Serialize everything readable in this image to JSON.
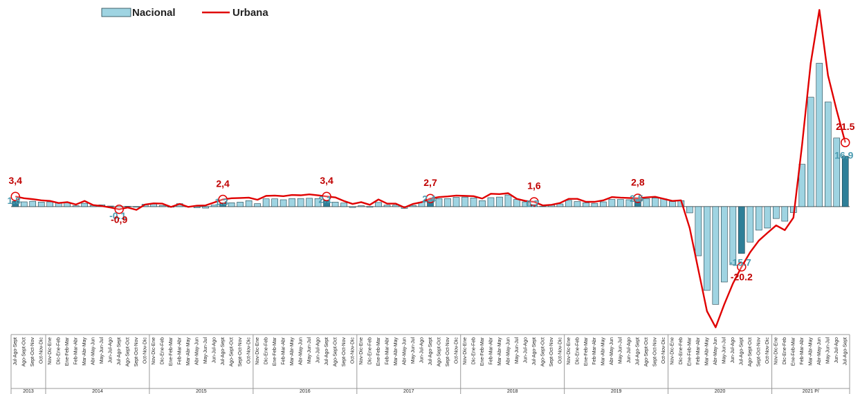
{
  "chart_data": {
    "type": "bar_line",
    "categories": [
      "Jul-Ago-Sept",
      "Ago-Sept-Oct",
      "Sept-Oct-Nov",
      "Oct-Nov-Dic",
      "Nov-Dic-Ene",
      "Dic-Ene-Feb",
      "Ene-Feb-Mar",
      "Feb-Mar-Abr",
      "Mar-Abr-May",
      "Abr-May-Jun",
      "May-Jun-Jul",
      "Jun-Jul-Ago",
      "Jul-Ago-Sept",
      "Ago-Sept-Oct",
      "Sept-Oct-Nov",
      "Oct-Nov-Dic",
      "Nov-Dic-Ene",
      "Dic-Ene-Feb",
      "Ene-Feb-Mar",
      "Feb-Mar-Abr",
      "Mar-Abr-May",
      "Abr-May-Jun",
      "May-Jun-Jul",
      "Jun-Jul-Ago",
      "Jul-Ago-Sept",
      "Ago-Sept-Oct",
      "Sept-Oct-Nov",
      "Oct-Nov-Dic",
      "Nov-Dic-Ene",
      "Dic-Ene-Feb",
      "Ene-Feb-Mar",
      "Feb-Mar-Abr",
      "Mar-Abr-May",
      "Abr-May-Jun",
      "May-Jun-Jul",
      "Jun-Jul-Ago",
      "Jul-Ago-Sept",
      "Ago-Sept-Oct",
      "Sept-Oct-Nov",
      "Oct-Nov-Dic",
      "Nov-Dic-Ene",
      "Dic-Ene-Feb",
      "Ene-Feb-Mar",
      "Feb-Mar-Abr",
      "Mar-Abr-May",
      "Abr-May-Jun",
      "May-Jun-Jul",
      "Jun-Jul-Ago",
      "Jul-Ago-Sept",
      "Ago-Sept-Oct",
      "Sept-Oct-Nov",
      "Oct-Nov-Dic",
      "Nov-Dic-Ene",
      "Dic-Ene-Feb",
      "Ene-Feb-Mar",
      "Feb-Mar-Abr",
      "Mar-Abr-May",
      "Abr-May-Jun",
      "May-Jun-Jul",
      "Jun-Jul-Ago",
      "Jul-Ago-Sept",
      "Ago-Sept-Oct",
      "Sept-Oct-Nov",
      "Oct-Nov-Dic",
      "Nov-Dic-Ene",
      "Dic-Ene-Feb",
      "Ene-Feb-Mar",
      "Feb-Mar-Abr",
      "Mar-Abr-May",
      "Abr-May-Jun",
      "May-Jun-Jul",
      "Jun-Jul-Ago",
      "Jul-Ago-Sept",
      "Ago-Sept-Oct",
      "Sept-Oct-Nov",
      "Oct-Nov-Dic",
      "Nov-Dic-Ene",
      "Dic-Ene-Feb",
      "Ene-Feb-Mar",
      "Feb-Mar-Abr",
      "Mar-Abr-May",
      "Abr-May-Jun",
      "May-Jun-Jul",
      "Jun-Jul-Ago",
      "Jul-Ago-Sept",
      "Ago-Sept-Oct",
      "Sept-Oct-Nov",
      "Oct-Nov-Dic",
      "Nov-Dic-Ene",
      "Dic-Ene-Feb",
      "Ene-Feb-Mar",
      "Feb-Mar-Abr",
      "Mar-Abr-May",
      "Abr-May-Jun",
      "May-Jun-Jul",
      "Jun-Jul-Ago",
      "Jul-Ago-Sept"
    ],
    "years": [
      "2013",
      "2014",
      "2015",
      "2016",
      "2017",
      "2018",
      "2019",
      "2020",
      "2021 P/"
    ],
    "ylim": [
      -42,
      67
    ],
    "series": [
      {
        "name": "Nacional",
        "type": "bar",
        "color": "#9fd4e2",
        "label_color": "#4a9bb0",
        "values": [
          1.8,
          1.6,
          1.8,
          1.5,
          1.6,
          1.2,
          1.4,
          0.3,
          1.1,
          0.4,
          0.6,
          0.2,
          -0.1,
          0.1,
          -0.2,
          0.8,
          0.9,
          0.4,
          -0.2,
          1.0,
          -0.1,
          -0.4,
          -0.5,
          0.5,
          1.3,
          1.3,
          1.5,
          2.0,
          1.0,
          2.6,
          2.6,
          2.3,
          2.7,
          2.7,
          2.8,
          2.7,
          2.1,
          1.5,
          1.2,
          -0.3,
          0.3,
          -0.2,
          1.4,
          0.5,
          0.5,
          -0.6,
          0.4,
          1.5,
          2.4,
          2.7,
          2.7,
          3.1,
          3.2,
          2.9,
          2.0,
          3.0,
          3.2,
          3.9,
          2.4,
          1.6,
          0.7,
          0.1,
          0.5,
          0.9,
          2.1,
          1.7,
          1.3,
          1.1,
          1.6,
          2.4,
          2.4,
          2.3,
          2.5,
          2.7,
          2.9,
          2.6,
          1.7,
          2.0,
          -2.1,
          -16.5,
          -28.1,
          -32.8,
          -25.3,
          -19.5,
          -15.7,
          -11.9,
          -7.9,
          -7.2,
          -4.0,
          -4.9,
          -2.0,
          14.2,
          36.7,
          48.1,
          35.1,
          23.0,
          16.9
        ],
        "value_labels": [
          "1.8",
          null,
          null,
          null,
          null,
          null,
          null,
          null,
          null,
          null,
          null,
          null,
          "-0.1",
          null,
          null,
          null,
          null,
          null,
          null,
          null,
          null,
          null,
          null,
          null,
          "1.3",
          null,
          null,
          null,
          null,
          null,
          null,
          null,
          null,
          null,
          null,
          null,
          "2.1",
          null,
          null,
          null,
          null,
          null,
          null,
          null,
          null,
          null,
          null,
          null,
          "2.4",
          null,
          null,
          null,
          null,
          null,
          null,
          null,
          null,
          null,
          null,
          null,
          "0.7",
          null,
          null,
          null,
          null,
          null,
          null,
          null,
          null,
          null,
          null,
          null,
          "2.5",
          null,
          null,
          null,
          null,
          null,
          null,
          null,
          null,
          null,
          null,
          null,
          "-15.7",
          null,
          null,
          null,
          null,
          null,
          null,
          null,
          null,
          null,
          null,
          null,
          "16.9"
        ]
      },
      {
        "name": "Urbana",
        "type": "line",
        "color": "#e00000",
        "values": [
          3.4,
          2.8,
          2.5,
          2.1,
          1.9,
          1.2,
          1.5,
          0.7,
          1.9,
          0.5,
          0.2,
          -0.3,
          -0.9,
          -0.3,
          -1.1,
          0.7,
          1.1,
          1.0,
          -0.1,
          0.9,
          -0.1,
          0.3,
          0.4,
          1.4,
          2.4,
          2.8,
          2.9,
          3.0,
          2.3,
          3.6,
          3.7,
          3.5,
          3.9,
          3.8,
          4.1,
          3.8,
          3.4,
          3.1,
          1.9,
          0.9,
          1.5,
          0.6,
          2.4,
          1.0,
          1.0,
          -0.3,
          0.9,
          1.5,
          2.7,
          3.2,
          3.4,
          3.7,
          3.6,
          3.5,
          2.7,
          4.3,
          4.2,
          4.5,
          2.6,
          1.9,
          1.6,
          0.4,
          0.6,
          1.2,
          2.6,
          2.6,
          1.6,
          1.6,
          2.1,
          3.2,
          3.0,
          2.9,
          2.8,
          3.1,
          3.3,
          2.6,
          1.9,
          2.1,
          -7.2,
          -21.2,
          -35.1,
          -40.5,
          -32.8,
          -25.8,
          -20.2,
          -15.3,
          -11.4,
          -8.8,
          -6.3,
          -7.9,
          -3.7,
          20.7,
          48.1,
          66.0,
          44.0,
          32.3,
          21.5
        ],
        "value_labels": [
          "3,4",
          null,
          null,
          null,
          null,
          null,
          null,
          null,
          null,
          null,
          null,
          null,
          "-0,9",
          null,
          null,
          null,
          null,
          null,
          null,
          null,
          null,
          null,
          null,
          null,
          "2,4",
          null,
          null,
          null,
          null,
          null,
          null,
          null,
          null,
          null,
          null,
          null,
          "3,4",
          null,
          null,
          null,
          null,
          null,
          null,
          null,
          null,
          null,
          null,
          null,
          "2,7",
          null,
          null,
          null,
          null,
          null,
          null,
          null,
          null,
          null,
          null,
          null,
          "1,6",
          null,
          null,
          null,
          null,
          null,
          null,
          null,
          null,
          null,
          null,
          null,
          "2,8",
          null,
          null,
          null,
          null,
          null,
          null,
          null,
          null,
          null,
          null,
          null,
          "-20.2",
          null,
          null,
          null,
          null,
          null,
          null,
          null,
          null,
          null,
          null,
          null,
          "21.5"
        ]
      }
    ]
  }
}
